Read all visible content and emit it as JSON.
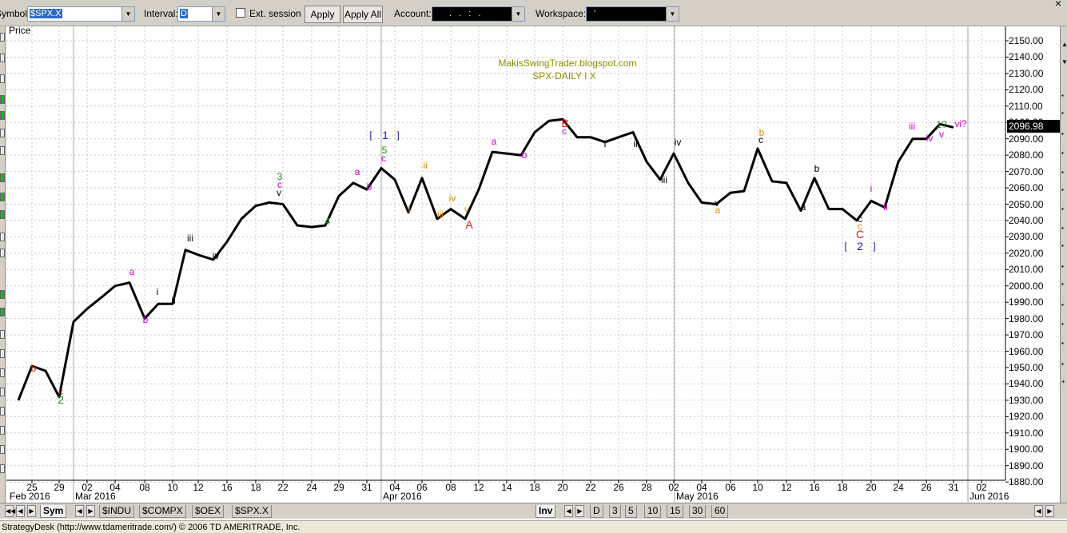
{
  "toolbar": {
    "symbol_label": "Symbol:",
    "symbol_value": "$SPX.X",
    "interval_label": "Interval:",
    "interval_value": "D",
    "ext_session_label": "Ext. session",
    "apply_label": "Apply",
    "apply_all_label": "Apply All",
    "account_label": "Account:",
    "account_value": ". . : .",
    "workspace_label": "Workspace:",
    "workspace_value": "'"
  },
  "chart": {
    "price_label": "Price",
    "title_line1": "MakisSwingTrader.blogspot.com",
    "title_line2": "SPX-DAILY  I X",
    "last_price": "2096.98",
    "price_ticks": [
      "2150.00",
      "2140.00",
      "2130.00",
      "2120.00",
      "2110.00",
      "2100.00",
      "2090.00",
      "2080.00",
      "2070.00",
      "2060.00",
      "2050.00",
      "2040.00",
      "2030.00",
      "2020.00",
      "2010.00",
      "2000.00",
      "1990.00",
      "1980.00",
      "1970.00",
      "1960.00",
      "1950.00",
      "1940.00",
      "1930.00",
      "1920.00",
      "1910.00",
      "1900.00",
      "1890.00",
      "1880.00"
    ],
    "x_ticks": [
      "25",
      "29",
      "02",
      "04",
      "08",
      "10",
      "12",
      "16",
      "18",
      "22",
      "24",
      "29",
      "31",
      "04",
      "06",
      "08",
      "12",
      "14",
      "18",
      "20",
      "22",
      "26",
      "28",
      "02",
      "04",
      "06",
      "10",
      "12",
      "16",
      "18",
      "20",
      "24",
      "26",
      "31",
      "02"
    ],
    "month_labels": [
      "Feb 2016",
      "Mar 2016",
      "Apr 2016",
      "May 2016",
      "Jun 2016"
    ],
    "price_series": [
      1930,
      1951,
      1948,
      1932,
      1978,
      1986,
      1993,
      2000,
      2002,
      1980,
      1989,
      1989,
      2022,
      2019,
      2016,
      2027,
      2041,
      2049,
      2051,
      2050,
      2037,
      2036,
      2037,
      2055,
      2063,
      2059,
      2072,
      2065,
      2045,
      2066,
      2041,
      2047,
      2041,
      2059,
      2082,
      2081,
      2080,
      2094,
      2101,
      2102,
      2091,
      2091,
      2088,
      2091,
      2094,
      2076,
      2065,
      2081,
      2063,
      2051,
      2050,
      2057,
      2058,
      2084,
      2064,
      2063,
      2046,
      2066,
      2047,
      2047,
      2040,
      2052,
      2048,
      2076,
      2090,
      2090,
      2099,
      2096.98
    ],
    "wave_labels": [
      {
        "t": "b",
        "c": "#d42020"
      },
      {
        "t": "c",
        "c": "#d42020"
      },
      {
        "t": "2",
        "c": "#1a8c1a"
      },
      {
        "t": "a",
        "c": "#d000d0"
      },
      {
        "t": "b",
        "c": "#d000d0"
      },
      {
        "t": "i",
        "c": "#000000"
      },
      {
        "t": "ii",
        "c": "#000000"
      },
      {
        "t": "iii",
        "c": "#000000"
      },
      {
        "t": "iv",
        "c": "#000000"
      },
      {
        "t": "3",
        "c": "#1a8c1a"
      },
      {
        "t": "c",
        "c": "#d000d0"
      },
      {
        "t": "v",
        "c": "#000000"
      },
      {
        "t": "4",
        "c": "#1a8c1a"
      },
      {
        "t": "a",
        "c": "#d000d0"
      },
      {
        "t": "b",
        "c": "#d000d0"
      },
      {
        "t": "[",
        "c": "#1a1ab4"
      },
      {
        "t": "1",
        "c": "#1a1ab4"
      },
      {
        "t": "]",
        "c": "#1a1ab4"
      },
      {
        "t": "5",
        "c": "#1a8c1a"
      },
      {
        "t": "c",
        "c": "#d000d0"
      },
      {
        "t": "ii",
        "c": "#e08a00"
      },
      {
        "t": "i",
        "c": "#e08a00"
      },
      {
        "t": "iii",
        "c": "#e08a00"
      },
      {
        "t": "iv",
        "c": "#e08a00"
      },
      {
        "t": "v",
        "c": "#e08a00"
      },
      {
        "t": "A",
        "c": "#d42020"
      },
      {
        "t": "a",
        "c": "#d000d0"
      },
      {
        "t": "b",
        "c": "#d000d0"
      },
      {
        "t": "B",
        "c": "#d42020"
      },
      {
        "t": "c",
        "c": "#d000d0"
      },
      {
        "t": "i",
        "c": "#000000"
      },
      {
        "t": "ii",
        "c": "#000000"
      },
      {
        "t": "iii",
        "c": "#000000"
      },
      {
        "t": "iv",
        "c": "#000000"
      },
      {
        "t": "v",
        "c": "#000000"
      },
      {
        "t": "a",
        "c": "#e08a00"
      },
      {
        "t": "b",
        "c": "#e08a00"
      },
      {
        "t": "c",
        "c": "#000000"
      },
      {
        "t": "b",
        "c": "#000000"
      },
      {
        "t": "a",
        "c": "#000000"
      },
      {
        "t": "c",
        "c": "#000000"
      },
      {
        "t": "c",
        "c": "#e08a00"
      },
      {
        "t": "C",
        "c": "#d42020"
      },
      {
        "t": "[",
        "c": "#1a1ab4"
      },
      {
        "t": "2",
        "c": "#1a1ab4"
      },
      {
        "t": "]",
        "c": "#1a1ab4"
      },
      {
        "t": "i",
        "c": "#d000d0"
      },
      {
        "t": "ii",
        "c": "#d000d0"
      },
      {
        "t": "iii",
        "c": "#d000d0"
      },
      {
        "t": "iv",
        "c": "#d000d0"
      },
      {
        "t": "1?",
        "c": "#1a8c1a"
      },
      {
        "t": "v",
        "c": "#d000d0"
      },
      {
        "t": "vi?",
        "c": "#d000d0"
      }
    ]
  },
  "tabs": {
    "sym": "Sym",
    "symbols": [
      "$INDU",
      "$COMPX",
      "$OEX",
      "$SPX.X"
    ],
    "inv": "Inv",
    "intervals": [
      "D",
      "3",
      "5",
      "10",
      "15",
      "30",
      "60"
    ]
  },
  "status": "StrategyDesk (http://www.tdameritrade.com/) © 2006 TD AMERITRADE, Inc."
}
